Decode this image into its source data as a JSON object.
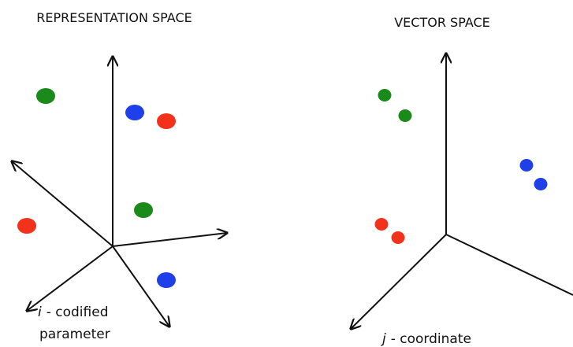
{
  "panels": [
    {
      "title": "REPRESENTATION SPACE",
      "variable": "i",
      "caption_lines": [
        "- codified",
        "parameter"
      ]
    },
    {
      "title": "VECTOR SPACE",
      "variable": "j",
      "caption_lines": [
        "- coordinate"
      ]
    }
  ]
}
